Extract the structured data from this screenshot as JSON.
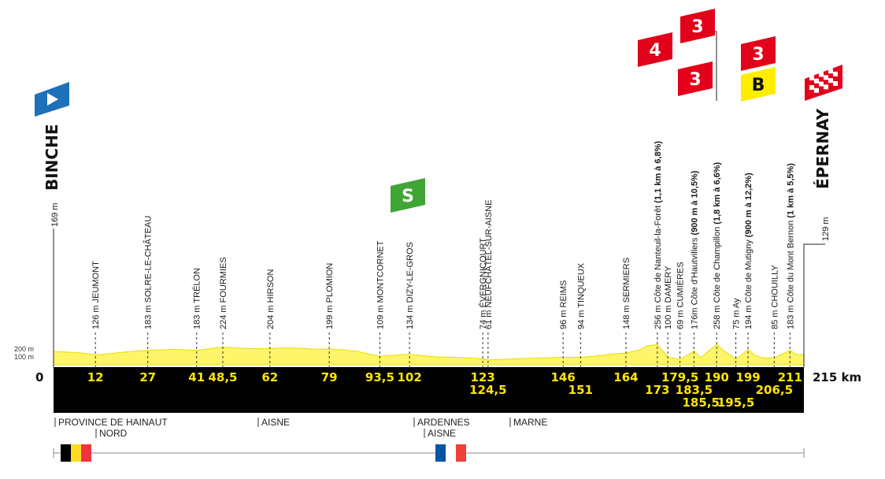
{
  "chart_data": {
    "type": "area",
    "total_km": 215,
    "start": {
      "name": "BINCHE",
      "altitude": "169 m"
    },
    "finish": {
      "name": "ÉPERNAY",
      "altitude": "129 m"
    },
    "axis": {
      "zero_label": "0",
      "end_label": "215 km",
      "elev_ticks": [
        "200 m",
        "100 m"
      ]
    },
    "waypoints": [
      {
        "km": 12,
        "km_label": "12",
        "alt": "126 m",
        "name": "JEUMONT",
        "extra": "",
        "row": 0
      },
      {
        "km": 27,
        "km_label": "27",
        "alt": "183 m",
        "name": "SOLRE-LE-CHÂTEAU",
        "extra": "",
        "row": 0
      },
      {
        "km": 41,
        "km_label": "41",
        "alt": "183 m",
        "name": "TRÉLON",
        "extra": "",
        "row": 0
      },
      {
        "km": 48.5,
        "km_label": "48,5",
        "alt": "224 m",
        "name": "FOURMIES",
        "extra": "",
        "row": 0
      },
      {
        "km": 62,
        "km_label": "62",
        "alt": "204 m",
        "name": "HIRSON",
        "extra": "",
        "row": 0
      },
      {
        "km": 79,
        "km_label": "79",
        "alt": "199 m",
        "name": "PLOMION",
        "extra": "",
        "row": 0
      },
      {
        "km": 93.5,
        "km_label": "93,5",
        "alt": "109 m",
        "name": "MONTCORNET",
        "extra": "",
        "row": 0
      },
      {
        "km": 102,
        "km_label": "102",
        "alt": "134 m",
        "name": "DIZY-LE-GROS",
        "extra": "",
        "row": 0
      },
      {
        "km": 123,
        "km_label": "123",
        "alt": "74 m",
        "name": "ÉVERGNICOURT",
        "extra": "",
        "row": 0
      },
      {
        "km": 124.5,
        "km_label": "124,5",
        "alt": "61 m",
        "name": "NEUFCHÂTEL-SUR-AISNE",
        "extra": "",
        "row": 1
      },
      {
        "km": 146,
        "km_label": "146",
        "alt": "96 m",
        "name": "REIMS",
        "extra": "",
        "row": 0
      },
      {
        "km": 151,
        "km_label": "151",
        "alt": "94 m",
        "name": "TINQUEUX",
        "extra": "",
        "row": 1
      },
      {
        "km": 164,
        "km_label": "164",
        "alt": "148 m",
        "name": "SERMIERS",
        "extra": "",
        "row": 0
      },
      {
        "km": 173,
        "km_label": "173",
        "alt": "256 m",
        "name": "Côte de Nanteuil-la-Forêt",
        "extra": "(1,1 km à 6,8%)",
        "row": 1
      },
      {
        "km": 176,
        "km_label": "",
        "alt": "100 m",
        "name": "DAMERY",
        "extra": "",
        "row": 0
      },
      {
        "km": 179.5,
        "km_label": "179,5",
        "alt": "69 m",
        "name": "CUMIÈRES",
        "extra": "",
        "row": 0
      },
      {
        "km": 183.5,
        "km_label": "183,5",
        "alt": "176m",
        "name": "Côte d'Hautvillers",
        "extra": "(900 m à 10,5%)",
        "row": 1
      },
      {
        "km": 185.5,
        "km_label": "185,5",
        "alt": "",
        "name": "",
        "extra": "",
        "row": 2
      },
      {
        "km": 190,
        "km_label": "190",
        "alt": "258 m",
        "name": "Côte de Champillon",
        "extra": "(1,8 km à 6,6%)",
        "row": 0
      },
      {
        "km": 195.5,
        "km_label": "195,5",
        "alt": "75 m",
        "name": "Ay",
        "extra": "",
        "row": 2
      },
      {
        "km": 199,
        "km_label": "199",
        "alt": "194 m",
        "name": "Côte de Mutigny",
        "extra": "(900 m à 12,2%)",
        "row": 0
      },
      {
        "km": 206.5,
        "km_label": "206,5",
        "alt": "85 m",
        "name": "CHOUILLY",
        "extra": "",
        "row": 1
      },
      {
        "km": 211,
        "km_label": "211",
        "alt": "183 m",
        "name": "Côte du Mont Bernon",
        "extra": "(1 km à 5,5%)",
        "row": 0
      }
    ],
    "elevation_profile": [
      [
        0,
        169
      ],
      [
        4,
        160
      ],
      [
        8,
        150
      ],
      [
        12,
        126
      ],
      [
        16,
        140
      ],
      [
        20,
        160
      ],
      [
        24,
        175
      ],
      [
        27,
        183
      ],
      [
        31,
        190
      ],
      [
        35,
        195
      ],
      [
        38,
        190
      ],
      [
        41,
        183
      ],
      [
        44,
        200
      ],
      [
        48.5,
        224
      ],
      [
        52,
        215
      ],
      [
        56,
        205
      ],
      [
        62,
        204
      ],
      [
        66,
        215
      ],
      [
        70,
        210
      ],
      [
        74,
        200
      ],
      [
        79,
        199
      ],
      [
        83,
        190
      ],
      [
        87,
        170
      ],
      [
        90,
        140
      ],
      [
        93.5,
        109
      ],
      [
        97,
        120
      ],
      [
        102,
        134
      ],
      [
        106,
        115
      ],
      [
        110,
        100
      ],
      [
        115,
        95
      ],
      [
        120,
        85
      ],
      [
        123,
        74
      ],
      [
        124.5,
        61
      ],
      [
        130,
        70
      ],
      [
        135,
        80
      ],
      [
        140,
        85
      ],
      [
        146,
        96
      ],
      [
        151,
        94
      ],
      [
        155,
        110
      ],
      [
        160,
        135
      ],
      [
        164,
        148
      ],
      [
        168,
        190
      ],
      [
        170,
        240
      ],
      [
        173,
        256
      ],
      [
        175,
        150
      ],
      [
        176,
        100
      ],
      [
        178,
        80
      ],
      [
        179.5,
        69
      ],
      [
        182,
        130
      ],
      [
        183.5,
        176
      ],
      [
        185.5,
        90
      ],
      [
        187,
        150
      ],
      [
        190,
        258
      ],
      [
        192,
        180
      ],
      [
        195.5,
        75
      ],
      [
        197,
        120
      ],
      [
        199,
        194
      ],
      [
        201,
        120
      ],
      [
        203,
        90
      ],
      [
        206.5,
        85
      ],
      [
        209,
        140
      ],
      [
        211,
        183
      ],
      [
        213,
        130
      ],
      [
        215,
        129
      ]
    ],
    "climbs": [
      {
        "category": "4",
        "name": "Côte de Nanteuil-la-Forêt"
      },
      {
        "category": "3",
        "name": "Côte d'Hautvillers"
      },
      {
        "category": "3",
        "name": "Côte de Champillon"
      },
      {
        "category": "3",
        "name": "Côte de Mutigny"
      }
    ],
    "bonus": {
      "label": "B"
    },
    "sprint": {
      "label": "S"
    },
    "regions": [
      {
        "name": "PROVINCE DE HAINAUT",
        "row": 0,
        "pos": "start"
      },
      {
        "name": "NORD",
        "row": 1,
        "pos": "after-border"
      },
      {
        "name": "AISNE",
        "row": 0,
        "pos": "aisne-1"
      },
      {
        "name": "ARDENNES",
        "row": 0,
        "pos": "ardennes"
      },
      {
        "name": "AISNE",
        "row": 1,
        "pos": "aisne-2"
      },
      {
        "name": "MARNE",
        "row": 0,
        "pos": "marne"
      }
    ],
    "colors": {
      "profile_fill": "#fff56a",
      "profile_top": "#e8dc00",
      "band": "#000000",
      "km_text": "#ffe600",
      "climb_red": "#e2001a",
      "bonus_yellow": "#ffed00",
      "sprint_green": "#3fa535",
      "start_blue": "#1d71b8"
    }
  }
}
